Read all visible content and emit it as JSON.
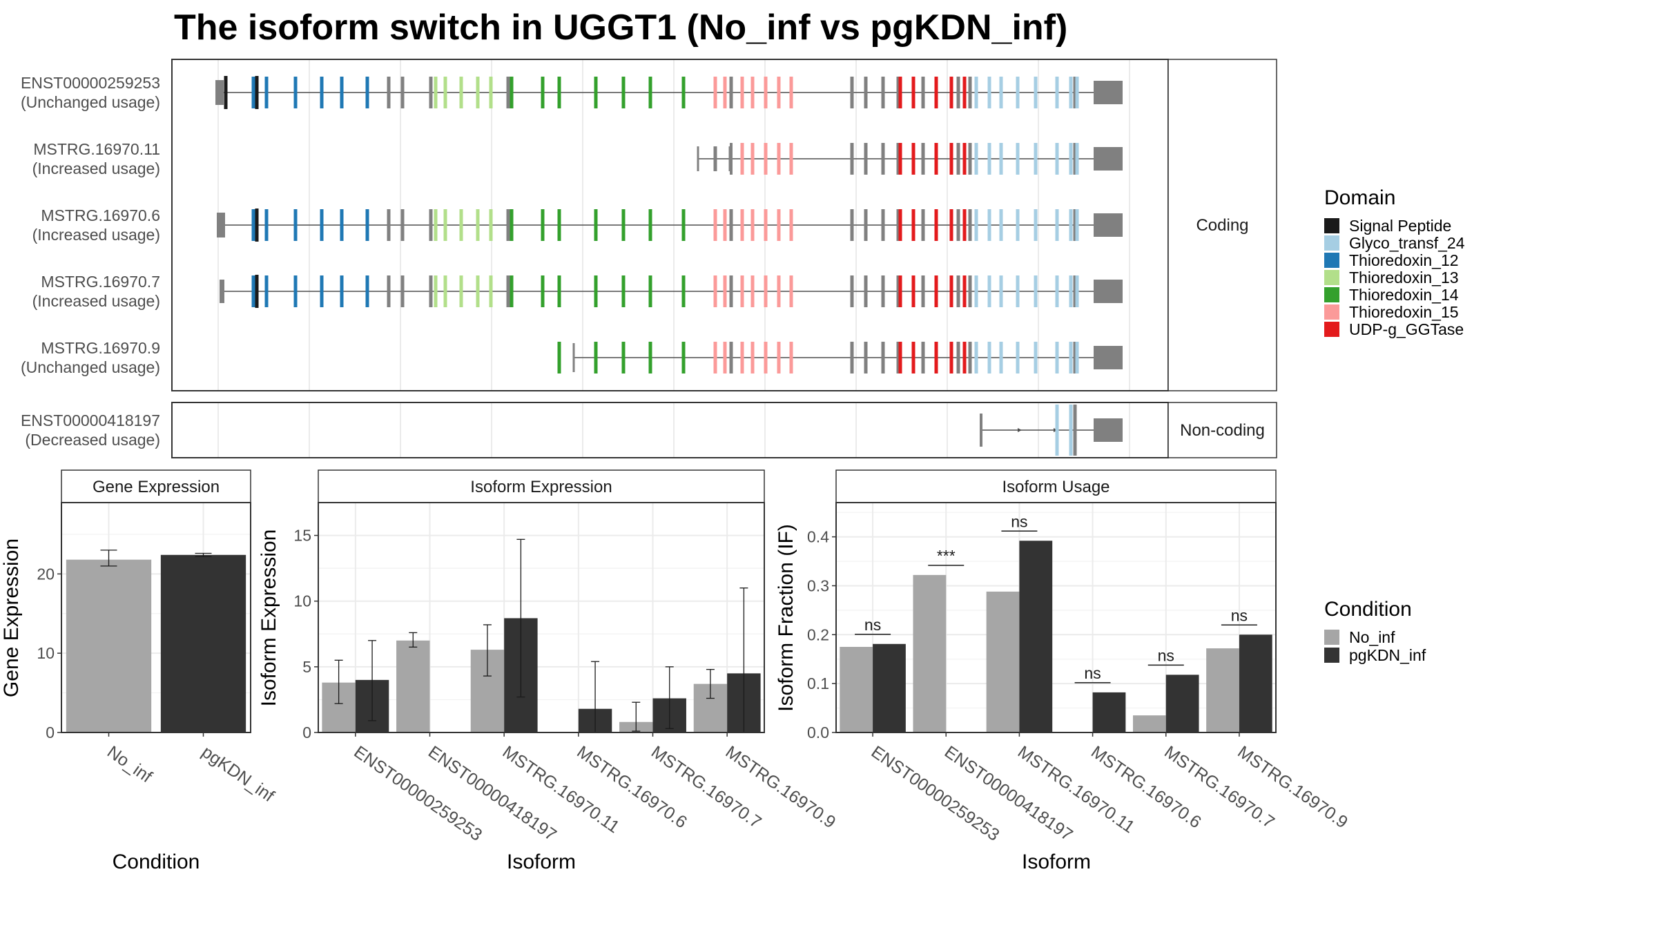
{
  "title": "The isoform switch in UGGT1 (No_inf vs pgKDN_inf)",
  "colors": {
    "no_inf": "#a6a6a6",
    "pgkdn_inf": "#333333",
    "utr": "#808080",
    "panel_border": "#333333",
    "grid": "#ebebeb",
    "strip_fill": "#ffffff"
  },
  "legend_domain": {
    "title": "Domain",
    "items": [
      {
        "label": "Signal Peptide",
        "color": "#1a1a1a"
      },
      {
        "label": "Glyco_transf_24",
        "color": "#a6cee3"
      },
      {
        "label": "Thioredoxin_12",
        "color": "#1f78b4"
      },
      {
        "label": "Thioredoxin_13",
        "color": "#b2df8a"
      },
      {
        "label": "Thioredoxin_14",
        "color": "#33a02c"
      },
      {
        "label": "Thioredoxin_15",
        "color": "#fb9a99"
      },
      {
        "label": "UDP-g_GGTase",
        "color": "#e31a1c"
      }
    ]
  },
  "legend_condition": {
    "title": "Condition",
    "items": [
      {
        "label": "No_inf",
        "color": "#a6a6a6"
      },
      {
        "label": "pgKDN_inf",
        "color": "#333333"
      }
    ]
  },
  "structure": {
    "facets": [
      {
        "label": "Coding",
        "transcripts": [
          {
            "name": "ENST00000259253",
            "usage": "(Unchanged usage)",
            "start": "first",
            "kind": "full"
          },
          {
            "name": "MSTRG.16970.11",
            "usage": "(Increased usage)",
            "start": "cterm",
            "kind": "short"
          },
          {
            "name": "MSTRG.16970.6",
            "usage": "(Increased usage)",
            "start": "alt",
            "kind": "full"
          },
          {
            "name": "MSTRG.16970.7",
            "usage": "(Increased usage)",
            "start": "alt2",
            "kind": "full"
          },
          {
            "name": "MSTRG.16970.9",
            "usage": "(Unchanged usage)",
            "start": "mid",
            "kind": "mid"
          }
        ]
      },
      {
        "label": "Non-coding",
        "transcripts": [
          {
            "name": "ENST00000418197",
            "usage": "(Decreased usage)",
            "start": "nc",
            "kind": "nc"
          }
        ]
      }
    ]
  },
  "chart_data": [
    {
      "type": "bar",
      "title": "Gene Expression",
      "xlabel": "Condition",
      "ylabel": "Gene Expression",
      "categories": [
        "No_inf",
        "pgKDN_inf"
      ],
      "values": [
        21.8,
        22.4
      ],
      "error": [
        [
          21.0,
          23.0
        ],
        [
          22.2,
          22.6
        ]
      ],
      "ylim": [
        0,
        29
      ],
      "yticks": [
        0,
        10,
        20
      ]
    },
    {
      "type": "bar",
      "title": "Isoform Expression",
      "xlabel": "Isoform",
      "ylabel": "Isoform Expression",
      "categories": [
        "ENST00000259253",
        "ENST00000418197",
        "MSTRG.16970.11",
        "MSTRG.16970.6",
        "MSTRG.16970.7",
        "MSTRG.16970.9"
      ],
      "series": [
        {
          "name": "No_inf",
          "values": [
            3.8,
            7.0,
            6.3,
            0.0,
            0.8,
            3.7
          ],
          "error": [
            [
              2.2,
              5.5
            ],
            [
              6.5,
              7.6
            ],
            [
              4.3,
              8.2
            ],
            [
              0.0,
              0.0
            ],
            [
              0.1,
              2.3
            ],
            [
              2.6,
              4.8
            ]
          ]
        },
        {
          "name": "pgKDN_inf",
          "values": [
            4.0,
            0.0,
            8.7,
            1.8,
            2.6,
            4.5
          ],
          "error": [
            [
              0.9,
              7.0
            ],
            [
              0.0,
              0.0
            ],
            [
              2.7,
              14.7
            ],
            [
              0.0,
              5.4
            ],
            [
              0.3,
              5.0
            ],
            [
              0.0,
              11.0
            ]
          ]
        }
      ],
      "ylim": [
        0,
        17.5
      ],
      "yticks": [
        0,
        5,
        10,
        15
      ]
    },
    {
      "type": "bar",
      "title": "Isoform Usage",
      "xlabel": "Isoform",
      "ylabel": "Isoform Fraction (IF)",
      "categories": [
        "ENST00000259253",
        "ENST00000418197",
        "MSTRG.16970.11",
        "MSTRG.16970.6",
        "MSTRG.16970.7",
        "MSTRG.16970.9"
      ],
      "series": [
        {
          "name": "No_inf",
          "values": [
            0.175,
            0.322,
            0.288,
            0.0,
            0.035,
            0.172
          ]
        },
        {
          "name": "pgKDN_inf",
          "values": [
            0.181,
            0.0,
            0.392,
            0.082,
            0.118,
            0.2
          ]
        }
      ],
      "significance": [
        "ns",
        "***",
        "ns",
        "ns",
        "ns",
        "ns"
      ],
      "ylim": [
        0,
        0.47
      ],
      "yticks": [
        0.0,
        0.1,
        0.2,
        0.3,
        0.4
      ]
    }
  ]
}
